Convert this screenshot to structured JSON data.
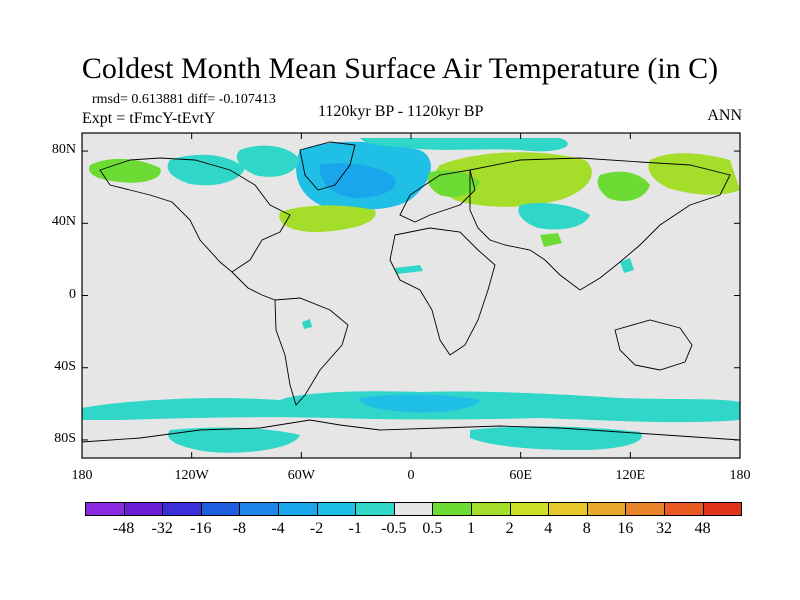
{
  "title": "Coldest Month Mean Surface Air Temperature (in C)",
  "stats": "rmsd= 0.613881 diff= -0.107413",
  "expt": "Expt = tFmcY-tEvtY",
  "period": "1120kyr BP - 1120kyr BP",
  "season": "ANN",
  "lat_labels": [
    "80N",
    "40N",
    "0",
    "40S",
    "80S"
  ],
  "lat_values": [
    80,
    40,
    0,
    -40,
    -80
  ],
  "lon_labels": [
    "180",
    "120W",
    "60W",
    "0",
    "60E",
    "120E",
    "180"
  ],
  "lon_values": [
    -180,
    -120,
    -60,
    0,
    60,
    120,
    180
  ],
  "colorbar": {
    "labels": [
      "-48",
      "-32",
      "-16",
      "-8",
      "-4",
      "-2",
      "-1",
      "-0.5",
      "0.5",
      "1",
      "2",
      "4",
      "8",
      "16",
      "32",
      "48"
    ],
    "colors": [
      "#8a2be2",
      "#6a1fd6",
      "#3a2fd8",
      "#1e5fe0",
      "#1e86e8",
      "#1aa6ea",
      "#20c0e6",
      "#30d6c8",
      "#e6e6e6",
      "#6cdc34",
      "#a4de2a",
      "#cce028",
      "#e6c82a",
      "#e8a82a",
      "#e8842a",
      "#e85a22",
      "#e0341a"
    ]
  },
  "colors": {
    "land_bg": "#e6e6e6",
    "coast": "#000000"
  }
}
